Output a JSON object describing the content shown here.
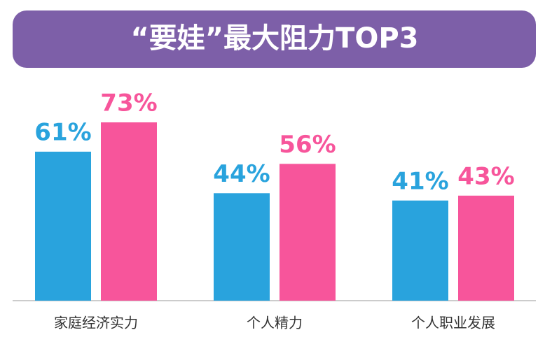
{
  "chart_data": {
    "type": "bar",
    "title": "“要娃”最大阻力TOP3",
    "categories": [
      "家庭经济实力",
      "个人精力",
      "个人职业发展"
    ],
    "series": [
      {
        "color": "#29a3dd",
        "values": [
          61,
          44,
          41
        ],
        "value_labels": [
          "61%",
          "44%",
          "41%"
        ]
      },
      {
        "color": "#f7559b",
        "values": [
          73,
          56,
          43
        ],
        "value_labels": [
          "73%",
          "56%",
          "43%"
        ]
      }
    ]
  }
}
